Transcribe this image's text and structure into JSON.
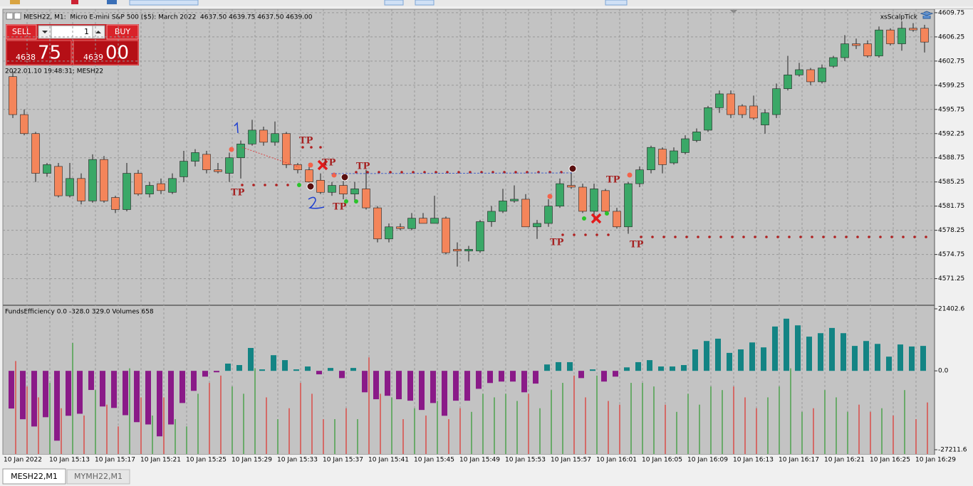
{
  "window": {
    "title": "MESH22, M1:  Micro E-mini S&P 500 ($5): March 2022  4637.50 4639.75 4637.50 4639.00",
    "expert": "xsScalpTick"
  },
  "trade_panel": {
    "sell": "SELL",
    "buy": "BUY",
    "volume": "1",
    "bid_big": "4638",
    "bid_small": "75",
    "ask_big": "4639",
    "ask_small": "00"
  },
  "tabs": [
    "MESH22,M1",
    "MYMH22,M1"
  ],
  "chart_data": [
    {
      "type": "candlestick",
      "info": "2022.01.10 19:48:31; MESH22",
      "up_color": "#3aa867",
      "down_color": "#f4855a",
      "grid": true,
      "ylim": [
        4567.5,
        4610.15
      ],
      "yticks": [
        4609.75,
        4606.25,
        4602.75,
        4599.25,
        4595.75,
        4592.25,
        4588.75,
        4585.25,
        4581.75,
        4578.25,
        4574.75,
        4571.25
      ],
      "categories": [
        "10 Jan 2022",
        null,
        null,
        null,
        "10 Jan 15:13",
        null,
        null,
        null,
        "10 Jan 15:17",
        null,
        null,
        null,
        "10 Jan 15:21",
        null,
        null,
        null,
        "10 Jan 15:25",
        null,
        null,
        null,
        "10 Jan 15:29",
        null,
        null,
        null,
        "10 Jan 15:33",
        null,
        null,
        null,
        "10 Jan 15:37",
        null,
        null,
        null,
        "10 Jan 15:41",
        null,
        null,
        null,
        "10 Jan 15:45",
        null,
        null,
        null,
        "10 Jan 15:49",
        null,
        null,
        null,
        "10 Jan 15:53",
        null,
        null,
        null,
        "10 Jan 15:57",
        null,
        null,
        null,
        "10 Jan 16:01",
        null,
        null,
        null,
        "10 Jan 16:05",
        null,
        null,
        null,
        "10 Jan 16:09",
        null,
        null,
        null,
        "10 Jan 16:13",
        null,
        null,
        null,
        "10 Jan 16:17",
        null,
        null,
        null,
        "10 Jan 16:21",
        null,
        null,
        null,
        "10 Jan 16:25",
        null,
        null,
        null,
        "10 Jan 16:29"
      ],
      "open": [
        4600.5,
        4595,
        4592.25,
        4586.5,
        4587.5,
        4583.25,
        4585.75,
        4582.5,
        4588.5,
        4583,
        4581.25,
        4586.5,
        4583.5,
        4585,
        4583.75,
        4586,
        4588.25,
        4589.25,
        4587,
        4586.5,
        4588.75,
        4590.75,
        4592.75,
        4591,
        4592.25,
        4587.75,
        4587,
        4585.5,
        4583.75,
        4584.75,
        4583.5,
        4584.25,
        4581.5,
        4577,
        4578.75,
        4578.5,
        4580,
        4579.25,
        4580,
        4575.5,
        4575.25,
        4575.25,
        4579.5,
        4581,
        4582.5,
        4582.75,
        4578.75,
        4579.25,
        4581.75,
        4584.75,
        4584.5,
        4581,
        4584,
        4581,
        4578.75,
        4585,
        4587,
        4590,
        4588,
        4589.5,
        4591.25,
        4592.75,
        4596,
        4598,
        4596.25,
        4596.25,
        4593.5,
        4595,
        4598.75,
        4600.75,
        4601.5,
        4599.75,
        4602,
        4603.25,
        4605.25,
        4605.25,
        4603.5,
        4607.25,
        4605.25,
        4607.5,
        4607.5
      ],
      "high": [
        4601.25,
        4595.75,
        4592.5,
        4588,
        4588,
        4588,
        4586.5,
        4589.25,
        4589,
        4583.25,
        4588,
        4587,
        4585.25,
        4585.75,
        4586.5,
        4589.75,
        4590,
        4589.75,
        4588,
        4589.5,
        4591.25,
        4594.25,
        4593.25,
        4594,
        4592.5,
        4588,
        4588,
        4586.5,
        4585.25,
        4585.75,
        4585.25,
        4587,
        4581.75,
        4579.25,
        4579.25,
        4580.75,
        4580.75,
        4583.25,
        4580.25,
        4576.5,
        4576,
        4579.75,
        4581.75,
        4584.25,
        4584.75,
        4583.5,
        4579.75,
        4582.75,
        4585.75,
        4587.5,
        4585,
        4585,
        4584.25,
        4581.5,
        4585.25,
        4587.5,
        4590.5,
        4590.25,
        4590.25,
        4592,
        4593,
        4596.25,
        4598.5,
        4598.5,
        4596.5,
        4597.75,
        4595.75,
        4599.5,
        4603.5,
        4602.5,
        4601.75,
        4602.25,
        4603.5,
        4606.5,
        4606,
        4605.75,
        4607.75,
        4607.5,
        4608.5,
        4608.25,
        4608
      ],
      "low": [
        4594.5,
        4592,
        4585.25,
        4586,
        4583,
        4583,
        4582,
        4582.25,
        4582.25,
        4580.75,
        4581,
        4583.25,
        4583,
        4583.5,
        4583.5,
        4585.25,
        4587.5,
        4586.5,
        4586.5,
        4585.25,
        4585.75,
        4590.5,
        4590.5,
        4590.5,
        4587.25,
        4586.5,
        4584.25,
        4583.5,
        4583.25,
        4582.75,
        4582.25,
        4581.25,
        4576.5,
        4576.5,
        4578.25,
        4578.25,
        4579.25,
        4579.25,
        4574.75,
        4573,
        4573.75,
        4575,
        4578.75,
        4580.75,
        4582.25,
        4578.75,
        4577,
        4578.75,
        4581.5,
        4584.25,
        4580.75,
        4579.75,
        4580.5,
        4578.5,
        4577.75,
        4584.5,
        4586.5,
        4586.5,
        4587.75,
        4589.25,
        4591,
        4592.5,
        4595.25,
        4594.5,
        4594.5,
        4594.25,
        4592.25,
        4594.5,
        4598.5,
        4600.5,
        4599.25,
        4599.5,
        4601.75,
        4602.75,
        4604.5,
        4603.25,
        4603.25,
        4605,
        4604.25,
        4607,
        4604
      ],
      "close": [
        4595,
        4592.25,
        4586.5,
        4587.75,
        4583.25,
        4585.75,
        4582.5,
        4588.5,
        4582.5,
        4581.25,
        4586.5,
        4583.5,
        4584.75,
        4584,
        4585.75,
        4588.25,
        4589.5,
        4587,
        4586.75,
        4588.75,
        4590.75,
        4592.75,
        4591,
        4592.25,
        4587.75,
        4587,
        4585.25,
        4583.75,
        4584.75,
        4583.5,
        4584.25,
        4581.5,
        4577,
        4578.75,
        4578.5,
        4580,
        4579.25,
        4580,
        4575,
        4575.25,
        4575.5,
        4579.5,
        4581,
        4582.5,
        4582.75,
        4578.75,
        4579.25,
        4581.75,
        4585,
        4584.5,
        4581,
        4584.25,
        4581,
        4578.75,
        4585,
        4587,
        4590.25,
        4587.75,
        4589.75,
        4591.5,
        4592.5,
        4596,
        4598,
        4595,
        4595,
        4594.5,
        4595.25,
        4598.75,
        4600.75,
        4601.5,
        4599.75,
        4601.75,
        4603.25,
        4605.25,
        4605,
        4603.5,
        4607.25,
        4605.25,
        4607.5,
        4607.25,
        4605.5
      ],
      "tp_labels": [
        "TP",
        "TP",
        "TP",
        "TP",
        "TP",
        "TP",
        "TP",
        "TP"
      ]
    },
    {
      "type": "bar",
      "title": "FundsEfficiency 0.0 -328.0 329.0 Volumes 658",
      "ylim": [
        -28685,
        22384
      ],
      "yticks": [
        21402.6,
        {
          "value": 0,
          "label": "0.0"
        },
        -27211.6
      ],
      "y2lim": [
        0,
        1890
      ],
      "series": [
        {
          "name": "FundsEfficiency",
          "color": "#138484",
          "negative_color": "#8a1a88",
          "values": [
            -13000,
            -16700,
            -19200,
            -16000,
            -24100,
            -15500,
            -14800,
            -6600,
            -12300,
            -12800,
            -15300,
            -17700,
            -18500,
            -22600,
            -18500,
            -11100,
            -6900,
            -2000,
            -500,
            2500,
            2000,
            7900,
            500,
            5400,
            3700,
            500,
            1500,
            -1200,
            1000,
            -2500,
            1000,
            -7400,
            -9800,
            -8600,
            -9800,
            -10300,
            -13500,
            -11100,
            -15500,
            -10300,
            -10300,
            -6200,
            -4200,
            -3700,
            -3700,
            -7400,
            -4400,
            2200,
            3000,
            3000,
            -2500,
            500,
            -3700,
            -2000,
            1200,
            3000,
            3700,
            1500,
            1500,
            2000,
            7400,
            10300,
            11100,
            6200,
            7400,
            9800,
            8100,
            15300,
            18000,
            15700,
            11800,
            13000,
            14800,
            13000,
            8600,
            10300,
            9300,
            4900,
            9100,
            8400,
            8600
          ]
        },
        {
          "name": "Volumes",
          "axis": "y2",
          "up_color": "#2e9a2e",
          "down_color": "#e0302a",
          "values": [
            1187,
            862,
            723,
            908,
            584,
            1418,
            491,
            816,
            630,
            352,
            1094,
            723,
            491,
            723,
            445,
            352,
            769,
            908,
            1001,
            862,
            769,
            1094,
            723,
            445,
            584,
            908,
            769,
            445,
            445,
            584,
            445,
            1233,
            769,
            723,
            445,
            584,
            491,
            677,
            445,
            584,
            538,
            769,
            723,
            769,
            677,
            769,
            584,
            816,
            908,
            1001,
            723,
            1001,
            677,
            630,
            908,
            908,
            862,
            630,
            538,
            769,
            630,
            862,
            816,
            862,
            723,
            584,
            723,
            862,
            1094,
            538,
            584,
            816,
            723,
            538,
            630,
            538,
            584,
            491,
            816,
            445,
            658
          ]
        }
      ]
    }
  ]
}
